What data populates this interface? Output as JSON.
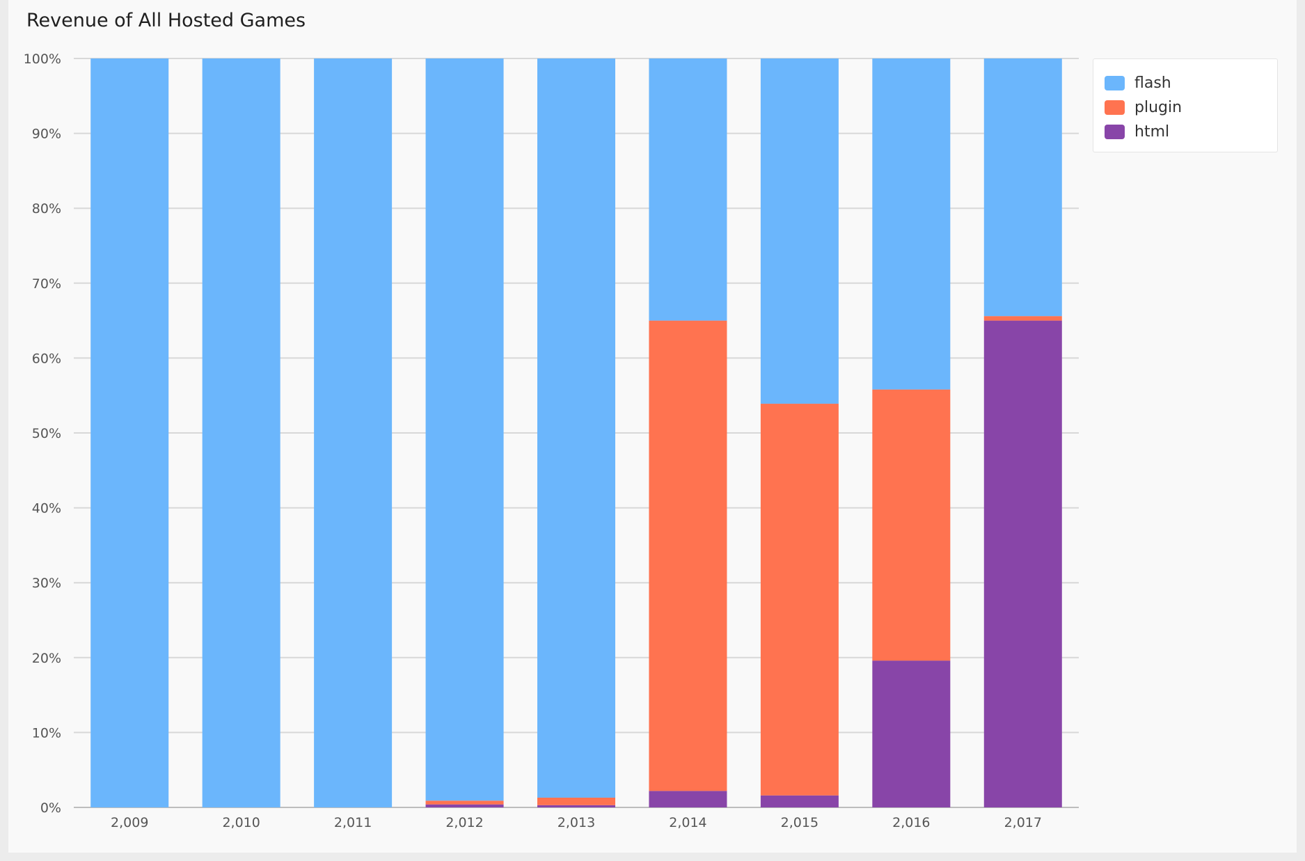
{
  "chart_data": {
    "type": "bar",
    "stacked": true,
    "title": "Revenue of All Hosted Games",
    "xlabel": "",
    "ylabel": "",
    "ylim": [
      0,
      100
    ],
    "y_ticks": [
      "0%",
      "10%",
      "20%",
      "30%",
      "40%",
      "50%",
      "60%",
      "70%",
      "80%",
      "90%",
      "100%"
    ],
    "categories": [
      "2,009",
      "2,010",
      "2,011",
      "2,012",
      "2,013",
      "2,014",
      "2,015",
      "2,016",
      "2,017"
    ],
    "series": [
      {
        "name": "html",
        "color": "#8845a8",
        "values": [
          0,
          0,
          0,
          0.4,
          0.3,
          2.2,
          1.6,
          19.6,
          65.0
        ]
      },
      {
        "name": "plugin",
        "color": "#ff7350",
        "values": [
          0,
          0,
          0,
          0.5,
          1.0,
          62.8,
          52.3,
          36.2,
          0.6
        ]
      },
      {
        "name": "flash",
        "color": "#6bb6fc",
        "values": [
          100,
          100,
          100,
          99.1,
          98.7,
          35.0,
          46.1,
          44.2,
          34.4
        ]
      }
    ],
    "legend": {
      "position": "top-right",
      "order": [
        "flash",
        "plugin",
        "html"
      ]
    },
    "grid": true
  }
}
